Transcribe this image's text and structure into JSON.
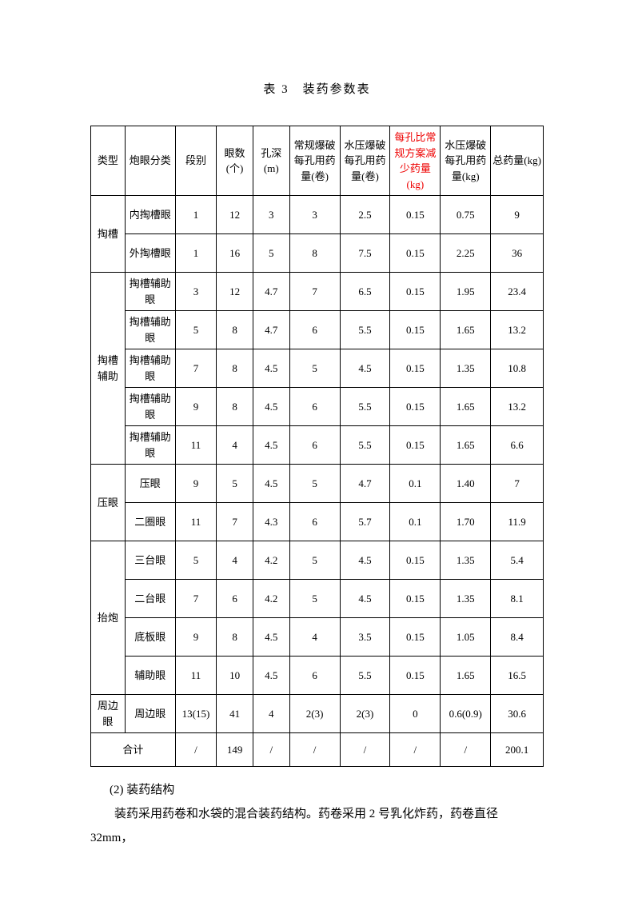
{
  "title": "表 3　装药参数表",
  "headers": {
    "c0": "类型",
    "c1": "炮眼分类",
    "c2": "段别",
    "c3": "眼数(个)",
    "c4": "孔深(m)",
    "c5": "常规爆破每孔用药量(卷)",
    "c6": "水压爆破每孔用药量(卷)",
    "c7": "每孔比常规方案减少药量(kg)",
    "c8": "水压爆破每孔用药量(kg)",
    "c9": "总药量(kg)"
  },
  "groups": [
    {
      "type": "掏槽",
      "rows": [
        {
          "c1": "内掏槽眼",
          "c2": "1",
          "c3": "12",
          "c4": "3",
          "c5": "3",
          "c6": "2.5",
          "c7": "0.15",
          "c8": "0.75",
          "c9": "9"
        },
        {
          "c1": "外掏槽眼",
          "c2": "1",
          "c3": "16",
          "c4": "5",
          "c5": "8",
          "c6": "7.5",
          "c7": "0.15",
          "c8": "2.25",
          "c9": "36"
        }
      ]
    },
    {
      "type": "掏槽辅助",
      "rows": [
        {
          "c1": "掏槽辅助眼",
          "c2": "3",
          "c3": "12",
          "c4": "4.7",
          "c5": "7",
          "c6": "6.5",
          "c7": "0.15",
          "c8": "1.95",
          "c9": "23.4"
        },
        {
          "c1": "掏槽辅助眼",
          "c2": "5",
          "c3": "8",
          "c4": "4.7",
          "c5": "6",
          "c6": "5.5",
          "c7": "0.15",
          "c8": "1.65",
          "c9": "13.2"
        },
        {
          "c1": "掏槽辅助眼",
          "c2": "7",
          "c3": "8",
          "c4": "4.5",
          "c5": "5",
          "c6": "4.5",
          "c7": "0.15",
          "c8": "1.35",
          "c9": "10.8"
        },
        {
          "c1": "掏槽辅助眼",
          "c2": "9",
          "c3": "8",
          "c4": "4.5",
          "c5": "6",
          "c6": "5.5",
          "c7": "0.15",
          "c8": "1.65",
          "c9": "13.2"
        },
        {
          "c1": "掏槽辅助眼",
          "c2": "11",
          "c3": "4",
          "c4": "4.5",
          "c5": "6",
          "c6": "5.5",
          "c7": "0.15",
          "c8": "1.65",
          "c9": "6.6"
        }
      ]
    },
    {
      "type": "压眼",
      "rows": [
        {
          "c1": "压眼",
          "c2": "9",
          "c3": "5",
          "c4": "4.5",
          "c5": "5",
          "c6": "4.7",
          "c7": "0.1",
          "c8": "1.40",
          "c9": "7"
        },
        {
          "c1": "二圈眼",
          "c2": "11",
          "c3": "7",
          "c4": "4.3",
          "c5": "6",
          "c6": "5.7",
          "c7": "0.1",
          "c8": "1.70",
          "c9": "11.9"
        }
      ]
    },
    {
      "type": "抬炮",
      "rows": [
        {
          "c1": "三台眼",
          "c2": "5",
          "c3": "4",
          "c4": "4.2",
          "c5": "5",
          "c6": "4.5",
          "c7": "0.15",
          "c8": "1.35",
          "c9": "5.4"
        },
        {
          "c1": "二台眼",
          "c2": "7",
          "c3": "6",
          "c4": "4.2",
          "c5": "5",
          "c6": "4.5",
          "c7": "0.15",
          "c8": "1.35",
          "c9": "8.1"
        },
        {
          "c1": "底板眼",
          "c2": "9",
          "c3": "8",
          "c4": "4.5",
          "c5": "4",
          "c6": "3.5",
          "c7": "0.15",
          "c8": "1.05",
          "c9": "8.4"
        },
        {
          "c1": "辅助眼",
          "c2": "11",
          "c3": "10",
          "c4": "4.5",
          "c5": "6",
          "c6": "5.5",
          "c7": "0.15",
          "c8": "1.65",
          "c9": "16.5"
        }
      ]
    },
    {
      "type": "周边眼",
      "rows": [
        {
          "c1": "周边眼",
          "c2": "13(15)",
          "c3": "41",
          "c4": "4",
          "c5": "2(3)",
          "c6": "2(3)",
          "c7": "0",
          "c8": "0.6(0.9)",
          "c9": "30.6"
        }
      ]
    }
  ],
  "total": {
    "label": "合计",
    "c2": "/",
    "c3": "149",
    "c4": "/",
    "c5": "/",
    "c6": "/",
    "c7": "/",
    "c8": "/",
    "c9": "200.1"
  },
  "footnote": {
    "line1": "(2) 装药结构",
    "line2": "装药采用药卷和水袋的混合装药结构。药卷采用 2 号乳化炸药，药卷直径 32mm，"
  }
}
